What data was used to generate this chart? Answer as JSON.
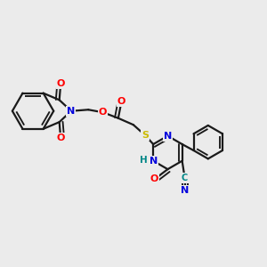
{
  "bg_color": "#ebebeb",
  "bond_color": "#1a1a1a",
  "bond_width": 1.6,
  "atom_colors": {
    "O": "#ff0000",
    "N": "#0000dd",
    "S": "#ccbb00",
    "C_cn": "#008888",
    "H": "#008888",
    "default": "#1a1a1a"
  },
  "figsize": [
    3.0,
    3.0
  ],
  "dpi": 100
}
